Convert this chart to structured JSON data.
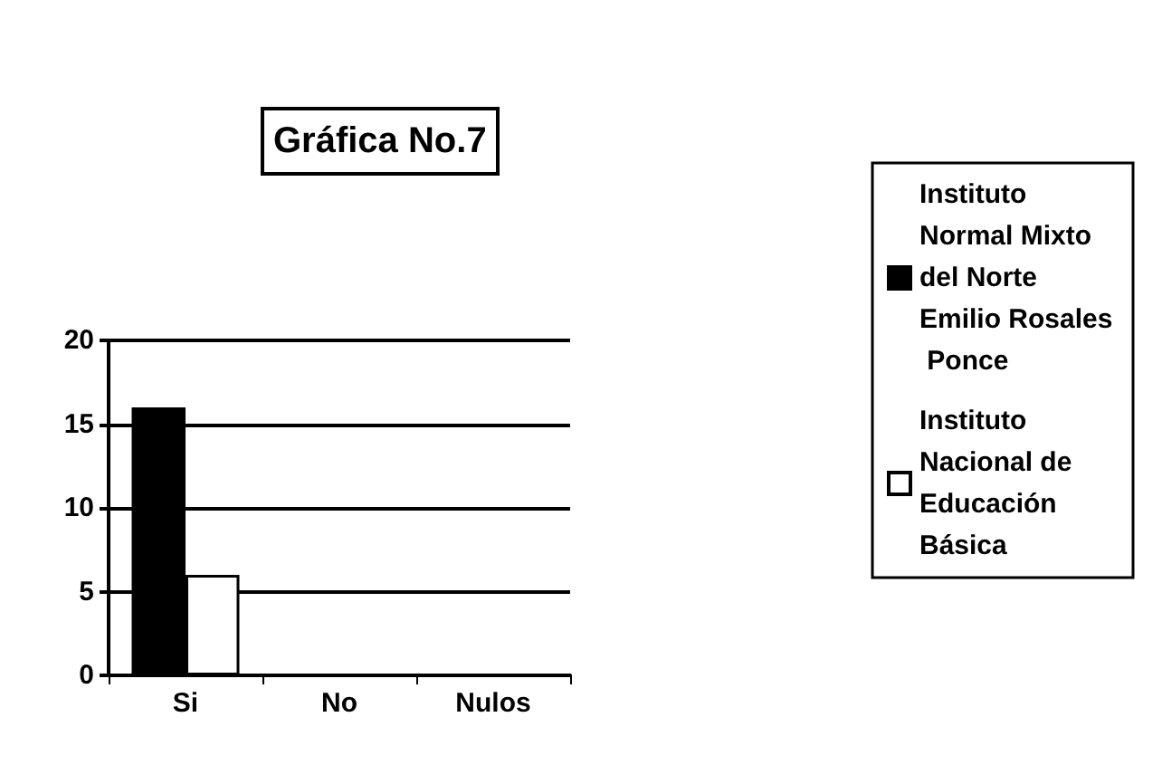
{
  "chart_data": {
    "type": "bar",
    "title": "Gráfica No.7",
    "categories": [
      "Si",
      "No",
      "Nulos"
    ],
    "series": [
      {
        "name": "Instituto Normal Mixto del Norte Emilio Rosales Ponce",
        "color": "#000000",
        "values": [
          16,
          0,
          0
        ]
      },
      {
        "name": "Instituto Nacional de Educación Básica",
        "color": "#ffffff",
        "values": [
          6,
          0,
          0
        ]
      }
    ],
    "ylim": [
      0,
      20
    ],
    "yticks": [
      0,
      5,
      10,
      15,
      20
    ],
    "grid": "y",
    "legend": "right"
  }
}
